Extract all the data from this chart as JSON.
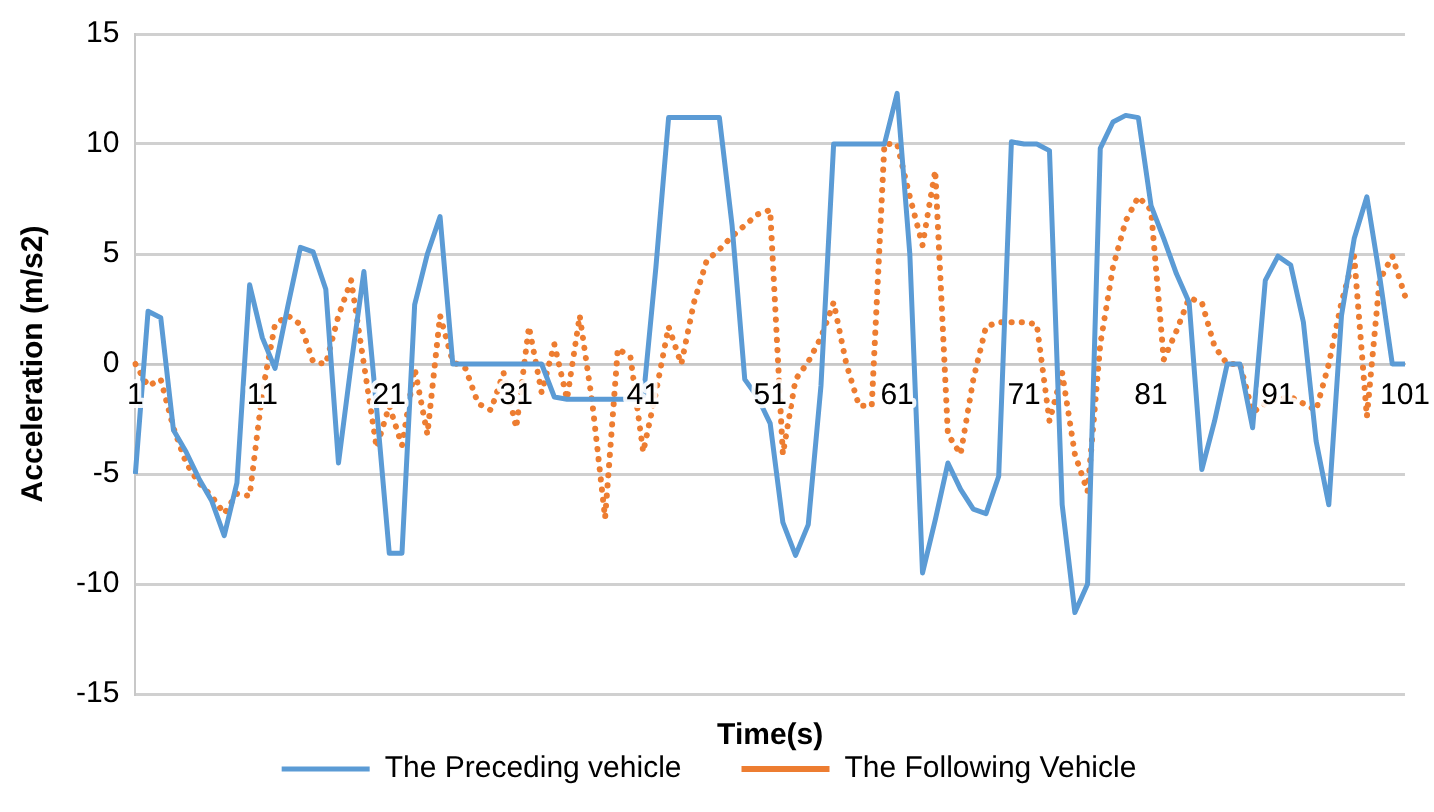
{
  "chart_data": {
    "type": "line",
    "xlabel": "Time(s)",
    "ylabel": "Acceleration (m/s2)",
    "categories": [
      "1",
      null,
      null,
      null,
      null,
      null,
      null,
      null,
      null,
      null,
      "11",
      null,
      null,
      null,
      null,
      null,
      null,
      null,
      null,
      null,
      "21",
      null,
      null,
      null,
      null,
      null,
      null,
      null,
      null,
      null,
      "31",
      null,
      null,
      null,
      null,
      null,
      null,
      null,
      null,
      null,
      "41",
      null,
      null,
      null,
      null,
      null,
      null,
      null,
      null,
      null,
      "51",
      null,
      null,
      null,
      null,
      null,
      null,
      null,
      null,
      null,
      "61",
      null,
      null,
      null,
      null,
      null,
      null,
      null,
      null,
      null,
      "71",
      null,
      null,
      null,
      null,
      null,
      null,
      null,
      null,
      null,
      "81",
      null,
      null,
      null,
      null,
      null,
      null,
      null,
      null,
      null,
      "91",
      null,
      null,
      null,
      null,
      null,
      null,
      null,
      null,
      null,
      "101"
    ],
    "series": [
      {
        "name": "The Preceding vehicle",
        "color": "#5b9bd5",
        "line_style": "solid",
        "values": [
          -5.0,
          2.4,
          2.1,
          -3.0,
          -4.0,
          -5.2,
          -6.2,
          -7.8,
          -5.4,
          3.6,
          1.2,
          -0.2,
          2.6,
          5.3,
          5.1,
          3.4,
          -4.5,
          0,
          4.2,
          -2.0,
          -8.6,
          -8.6,
          2.7,
          5.0,
          6.7,
          0,
          0,
          0,
          0,
          0,
          0,
          0,
          0,
          -1.5,
          -1.6,
          -1.6,
          -1.6,
          -1.6,
          -1.6,
          -1.6,
          -1.6,
          4.4,
          11.2,
          11.2,
          11.2,
          11.2,
          11.2,
          6.3,
          -0.7,
          -1.5,
          -2.7,
          -7.2,
          -8.7,
          -7.3,
          -1.0,
          10.0,
          10.0,
          10.0,
          10.0,
          10.0,
          12.3,
          5.0,
          -9.5,
          -7.1,
          -4.5,
          -5.7,
          -6.6,
          -6.8,
          -5.1,
          10.1,
          10.0,
          10.0,
          9.7,
          -6.4,
          -11.3,
          -10.0,
          9.8,
          11.0,
          11.3,
          11.2,
          7.2,
          5.7,
          4.1,
          2.8,
          -4.8,
          -2.6,
          0,
          0,
          -2.9,
          3.8,
          4.9,
          4.5,
          1.9,
          -3.5,
          -6.4,
          2.2,
          5.7,
          7.6,
          4.0,
          0,
          0
        ]
      },
      {
        "name": "The Following Vehicle",
        "color": "#ed7d31",
        "line_style": "dotted",
        "values": [
          0,
          -1.0,
          -0.7,
          -2.9,
          -4.5,
          -5.4,
          -6.0,
          -6.8,
          -5.9,
          -6.0,
          -1.3,
          1.8,
          2.2,
          1.8,
          0.1,
          0,
          2.2,
          3.8,
          0,
          -3.8,
          -1.9,
          -3.7,
          -0.2,
          -3.2,
          2.2,
          0.1,
          -0.2,
          -1.8,
          -2.1,
          -0.4,
          -2.9,
          1.7,
          -1.3,
          0.9,
          -1.6,
          2.2,
          -1.8,
          -7.0,
          0.7,
          0.3,
          -4.0,
          -1.3,
          1.7,
          0,
          2.8,
          4.7,
          5.2,
          5.8,
          6.3,
          6.8,
          7.0,
          -4.1,
          -0.7,
          0.1,
          1.2,
          2.8,
          0,
          -1.9,
          -1.9,
          10.0,
          10.0,
          7.6,
          5.4,
          8.8,
          -3.2,
          -4.1,
          -0.7,
          1.7,
          1.9,
          1.9,
          1.9,
          1.8,
          -2.6,
          -0.4,
          -4.1,
          -5.8,
          0.9,
          4.4,
          6.5,
          7.6,
          7.0,
          0.2,
          1.5,
          3.0,
          2.8,
          0.8,
          0,
          0,
          -2.2,
          -1.8,
          -1.6,
          -1.5,
          -1.8,
          -2.1,
          0,
          2.8,
          4.9,
          -2.4,
          3.8,
          4.9,
          3.1
        ]
      }
    ],
    "ylim": [
      -15,
      15
    ],
    "yticks": [
      -15,
      -10,
      -5,
      0,
      5,
      10,
      15
    ],
    "grid": "y",
    "legend": "bottom",
    "marker": "none"
  }
}
